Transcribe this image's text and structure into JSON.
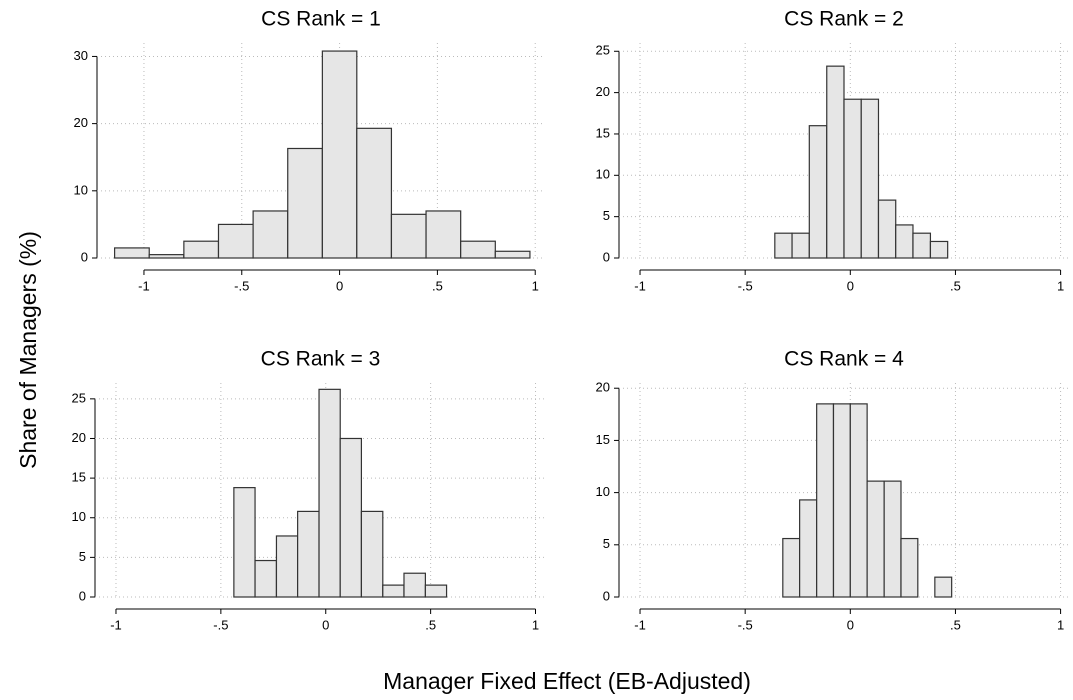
{
  "y_label": "Share of Managers (%)",
  "x_label": "Manager Fixed Effect (EB-Adjusted)",
  "chart_data": [
    {
      "type": "histogram",
      "title": "CS Rank = 1",
      "color": "#e6e6e6",
      "grid": true,
      "bins": [
        -1.15,
        -0.973,
        -0.796,
        -0.619,
        -0.442,
        -0.265,
        -0.088,
        0.088,
        0.265,
        0.442,
        0.619,
        0.796,
        0.973
      ],
      "values": [
        1.5,
        0.5,
        2.5,
        5,
        7,
        16.3,
        30.8,
        19.3,
        6.5,
        7,
        2.5,
        1
      ],
      "xlim": [
        -1.24,
        1.05
      ],
      "ylim": [
        0,
        32
      ],
      "xticks": [
        {
          "value": -1,
          "label": "-1"
        },
        {
          "value": -0.5,
          "label": "-.5"
        },
        0,
        {
          "value": 0.5,
          "label": ".5"
        },
        1
      ],
      "yticks": [
        0,
        10,
        20,
        30
      ]
    },
    {
      "type": "histogram",
      "title": "CS Rank = 2",
      "color": "#e6e6e6",
      "grid": true,
      "bins": [
        -0.359,
        -0.277,
        -0.195,
        -0.112,
        -0.03,
        0.052,
        0.134,
        0.216,
        0.298,
        0.381,
        0.463
      ],
      "values": [
        3,
        3,
        16,
        23.2,
        19.2,
        19.2,
        7,
        4,
        3,
        2
      ],
      "xlim": [
        -1.1,
        1.04
      ],
      "ylim": [
        0,
        26
      ],
      "xticks": [
        {
          "value": -1,
          "label": "-1"
        },
        {
          "value": -0.5,
          "label": "-.5"
        },
        0,
        {
          "value": 0.5,
          "label": ".5"
        },
        1
      ],
      "yticks": [
        0,
        5,
        10,
        15,
        20,
        25
      ]
    },
    {
      "type": "histogram",
      "title": "CS Rank = 3",
      "color": "#e6e6e6",
      "grid": true,
      "bins": [
        -0.438,
        -0.337,
        -0.235,
        -0.134,
        -0.032,
        0.069,
        0.17,
        0.272,
        0.373,
        0.475,
        0.576
      ],
      "values": [
        13.8,
        4.6,
        7.7,
        10.8,
        26.2,
        20,
        10.8,
        1.5,
        3,
        1.5
      ],
      "xlim": [
        -1.1,
        1.05
      ],
      "ylim": [
        0,
        27
      ],
      "xticks": [
        {
          "value": -1,
          "label": "-1"
        },
        {
          "value": -0.5,
          "label": "-.5"
        },
        0,
        {
          "value": 0.5,
          "label": ".5"
        },
        1
      ],
      "yticks": [
        0,
        5,
        10,
        15,
        20,
        25
      ]
    },
    {
      "type": "histogram",
      "title": "CS Rank = 4",
      "color": "#e6e6e6",
      "grid": true,
      "bins": [
        -0.321,
        -0.241,
        -0.16,
        -0.08,
        0,
        0.08,
        0.161,
        0.241,
        0.321,
        0.402,
        0.482
      ],
      "values": [
        5.6,
        9.3,
        18.5,
        18.5,
        18.5,
        11.1,
        11.1,
        5.6,
        0,
        1.9
      ],
      "xlim": [
        -1.1,
        1.04
      ],
      "ylim": [
        0,
        20.5
      ],
      "xticks": [
        {
          "value": -1,
          "label": "-1"
        },
        {
          "value": -0.5,
          "label": "-.5"
        },
        0,
        {
          "value": 0.5,
          "label": ".5"
        },
        1
      ],
      "yticks": [
        0,
        5,
        10,
        15,
        20
      ]
    }
  ]
}
